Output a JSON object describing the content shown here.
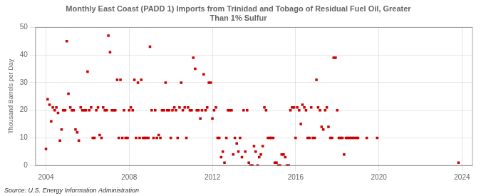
{
  "chart_data": {
    "type": "scatter",
    "title": "Monthly East Coast (PADD 1) Imports from Trinidad and Tobago of Residual Fuel Oil, Greater\nThan 1% Sulfur",
    "y_label": "Thousand Barrels per Day",
    "annotations": [
      "Source: U.S. Energy Information Administration"
    ],
    "color": "#cc0000",
    "marker": "square",
    "grid": true,
    "legend": false,
    "xlim": [
      2003.5,
      2024.5
    ],
    "ylim": [
      0,
      50
    ],
    "xticks": [
      2004,
      2008,
      2012,
      2016,
      2020,
      2024
    ],
    "yticks": [
      0,
      10,
      20,
      30,
      40,
      50
    ],
    "x": [
      2004.0,
      2004.08,
      2004.17,
      2004.25,
      2004.33,
      2004.42,
      2004.5,
      2004.58,
      2004.67,
      2004.75,
      2004.83,
      2004.92,
      2005.0,
      2005.08,
      2005.17,
      2005.25,
      2005.33,
      2005.42,
      2005.5,
      2005.58,
      2005.67,
      2005.75,
      2005.83,
      2005.92,
      2006.0,
      2006.08,
      2006.17,
      2006.25,
      2006.33,
      2006.42,
      2006.5,
      2006.58,
      2006.67,
      2006.75,
      2006.83,
      2006.92,
      2007.0,
      2007.08,
      2007.17,
      2007.25,
      2007.33,
      2007.42,
      2007.5,
      2007.58,
      2007.67,
      2007.75,
      2007.83,
      2007.92,
      2008.0,
      2008.08,
      2008.17,
      2008.25,
      2008.33,
      2008.42,
      2008.5,
      2008.58,
      2008.67,
      2008.75,
      2008.83,
      2008.92,
      2009.0,
      2009.08,
      2009.17,
      2009.25,
      2009.33,
      2009.42,
      2009.5,
      2009.58,
      2009.67,
      2009.75,
      2009.83,
      2009.92,
      2010.0,
      2010.08,
      2010.17,
      2010.25,
      2010.33,
      2010.42,
      2010.5,
      2010.58,
      2010.67,
      2010.75,
      2010.83,
      2010.92,
      2011.0,
      2011.08,
      2011.17,
      2011.25,
      2011.33,
      2011.42,
      2011.5,
      2011.58,
      2011.67,
      2011.75,
      2011.83,
      2011.92,
      2012.0,
      2012.08,
      2012.17,
      2012.25,
      2012.33,
      2012.42,
      2012.5,
      2012.58,
      2012.67,
      2012.75,
      2012.83,
      2012.92,
      2013.0,
      2013.08,
      2013.17,
      2013.25,
      2013.33,
      2013.42,
      2013.5,
      2013.58,
      2013.67,
      2013.75,
      2013.83,
      2013.92,
      2014.0,
      2014.08,
      2014.17,
      2014.25,
      2014.33,
      2014.42,
      2014.5,
      2014.58,
      2014.67,
      2014.75,
      2014.83,
      2014.92,
      2015.0,
      2015.08,
      2015.17,
      2015.25,
      2015.33,
      2015.42,
      2015.5,
      2015.58,
      2015.67,
      2015.75,
      2015.83,
      2015.92,
      2016.0,
      2016.08,
      2016.17,
      2016.25,
      2016.33,
      2016.42,
      2016.5,
      2016.58,
      2016.67,
      2016.75,
      2016.83,
      2016.92,
      2017.0,
      2017.08,
      2017.17,
      2017.25,
      2017.33,
      2017.42,
      2017.5,
      2017.58,
      2017.67,
      2017.75,
      2017.83,
      2017.92,
      2018.0,
      2018.08,
      2018.17,
      2018.25,
      2018.33,
      2018.42,
      2018.5,
      2018.58,
      2018.67,
      2018.75,
      2018.83,
      2018.92,
      2019.0,
      2019.42,
      2019.92,
      2023.83
    ],
    "values": [
      6,
      24,
      22,
      16,
      21,
      20,
      21,
      19,
      9,
      13,
      20,
      20,
      45,
      26,
      21,
      20,
      20,
      13,
      12,
      9,
      21,
      20,
      20,
      20,
      34,
      20,
      21,
      10,
      10,
      20,
      21,
      11,
      10,
      21,
      20,
      20,
      47,
      41,
      20,
      20,
      20,
      31,
      10,
      31,
      10,
      20,
      10,
      10,
      20,
      21,
      20,
      31,
      10,
      30,
      10,
      31,
      10,
      10,
      10,
      10,
      43,
      20,
      10,
      20,
      10,
      11,
      10,
      20,
      20,
      30,
      20,
      20,
      10,
      20,
      21,
      20,
      10,
      21,
      30,
      20,
      21,
      10,
      21,
      20,
      20,
      39,
      35,
      20,
      20,
      17,
      20,
      33,
      20,
      21,
      30,
      30,
      17,
      20,
      21,
      10,
      10,
      3,
      5,
      1,
      10,
      20,
      20,
      20,
      4,
      10,
      8,
      5,
      10,
      3,
      20,
      5,
      20,
      1,
      0,
      0,
      7,
      5,
      0,
      3,
      4,
      7,
      21,
      20,
      10,
      10,
      10,
      10,
      1,
      1,
      0,
      0,
      4,
      4,
      3,
      0,
      0,
      20,
      21,
      21,
      10,
      21,
      20,
      15,
      22,
      21,
      20,
      10,
      10,
      21,
      10,
      10,
      31,
      21,
      20,
      14,
      13,
      20,
      21,
      14,
      10,
      10,
      39,
      39,
      20,
      10,
      10,
      10,
      4,
      10,
      10,
      10,
      10,
      10,
      10,
      10,
      10,
      10,
      10,
      1
    ]
  }
}
